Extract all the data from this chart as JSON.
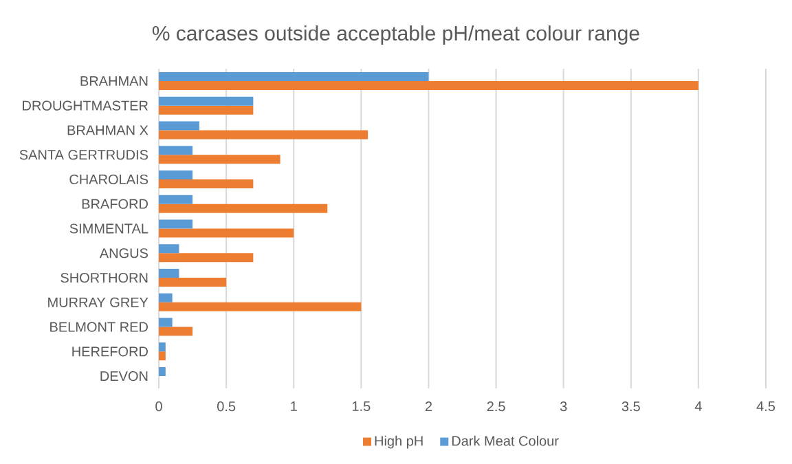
{
  "chart_data": {
    "type": "bar",
    "orientation": "horizontal",
    "title": "% carcases outside acceptable pH/meat colour range",
    "categories": [
      "BRAHMAN",
      "DROUGHTMASTER",
      "BRAHMAN X",
      "SANTA GERTRUDIS",
      "CHAROLAIS",
      "BRAFORD",
      "SIMMENTAL",
      "ANGUS",
      "SHORTHORN",
      "MURRAY GREY",
      "BELMONT RED",
      "HEREFORD",
      "DEVON"
    ],
    "series": [
      {
        "name": "High pH",
        "color": "#ed7d31",
        "values": [
          4,
          0.7,
          1.55,
          0.9,
          0.7,
          1.25,
          1,
          0.7,
          0.5,
          1.5,
          0.25,
          0.05,
          null
        ]
      },
      {
        "name": "Dark Meat Colour",
        "color": "#5b9bd5",
        "values": [
          2,
          0.7,
          0.3,
          0.25,
          0.25,
          0.25,
          0.25,
          0.15,
          0.15,
          0.1,
          0.1,
          0.05,
          0.05
        ]
      }
    ],
    "xlim": [
      0,
      4.5
    ],
    "xticks": [
      0,
      0.5,
      1,
      1.5,
      2,
      2.5,
      3,
      3.5,
      4,
      4.5
    ],
    "grid": "x",
    "legend": "bottom"
  }
}
